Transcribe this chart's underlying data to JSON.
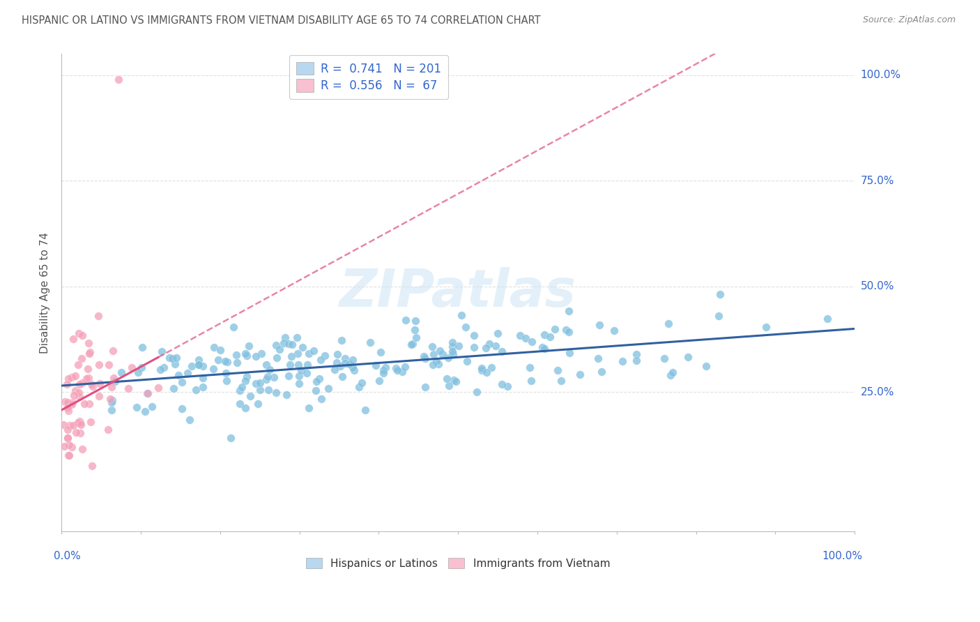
{
  "title": "HISPANIC OR LATINO VS IMMIGRANTS FROM VIETNAM DISABILITY AGE 65 TO 74 CORRELATION CHART",
  "source": "Source: ZipAtlas.com",
  "ylabel": "Disability Age 65 to 74",
  "watermark": "ZIPatlas",
  "blue_R": 0.741,
  "blue_N": 201,
  "pink_R": 0.556,
  "pink_N": 67,
  "blue_color": "#7fbfdf",
  "pink_color": "#f4a0b8",
  "blue_line_color": "#3060a0",
  "pink_line_color": "#e05080",
  "blue_legend_facecolor": "#b8d8f0",
  "pink_legend_facecolor": "#f8c0d0",
  "legend_text_color": "#3366cc",
  "title_color": "#555555",
  "right_tick_color": "#3366cc",
  "background_color": "#ffffff",
  "grid_color": "#e0e0e0",
  "seed": 42,
  "ylim_low": -0.08,
  "ylim_high": 1.05,
  "xlim_low": 0,
  "xlim_high": 1,
  "yticks": [
    0.25,
    0.5,
    0.75,
    1.0
  ],
  "ytick_labels": [
    "25.0%",
    "50.0%",
    "75.0%",
    "100.0%"
  ]
}
